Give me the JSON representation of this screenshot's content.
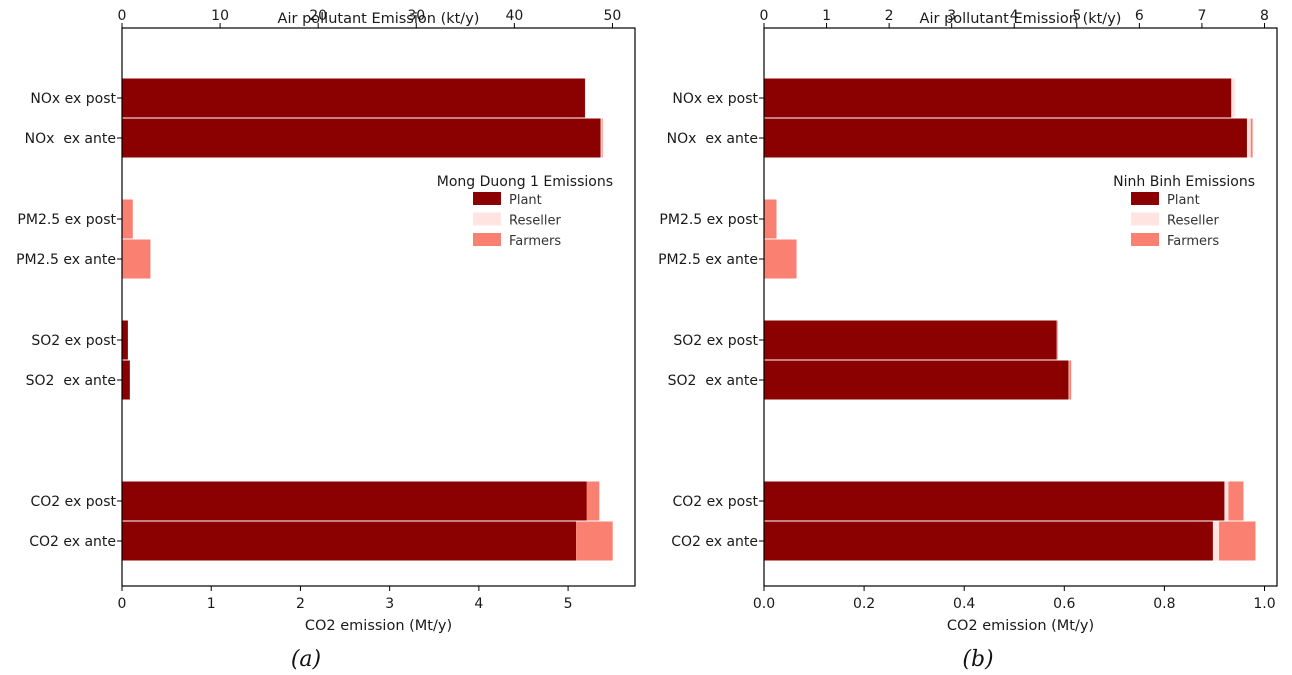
{
  "colors": {
    "plant": "#8b0000",
    "reseller": "#ffe4e1",
    "farmers": "#fa8072",
    "axis": "#000000"
  },
  "chart_data": [
    {
      "type": "bar",
      "orientation": "horizontal",
      "stacked": true,
      "caption": "(a)",
      "legend_title": "Mong Duong 1 Emissions",
      "legend_position": "right",
      "xlabel": "CO2 emission (Mt/y)",
      "x2label": "Air pollutant Emission (kt/y)",
      "xlim": [
        0,
        5.75
      ],
      "x2lim": [
        0,
        52.3
      ],
      "xticks": [
        0,
        1,
        2,
        3,
        4,
        5
      ],
      "xtick_labels": [
        "0",
        "1",
        "2",
        "3",
        "4",
        "5"
      ],
      "x2ticks": [
        0,
        10,
        20,
        30,
        40,
        50
      ],
      "x2tick_labels": [
        "0",
        "10",
        "20",
        "30",
        "40",
        "50"
      ],
      "series_names": [
        "Plant",
        "Reseller",
        "Farmers"
      ],
      "categories": [
        "NOx ex post",
        "NOx  ex ante",
        "PM2.5 ex post",
        "PM2.5 ex ante",
        "SO2 ex post",
        "SO2  ex ante",
        "CO2 ex post",
        "CO2 ex ante"
      ],
      "category_axis": [
        "top",
        "top",
        "top",
        "top",
        "top",
        "top",
        "bottom",
        "bottom"
      ],
      "values": {
        "Plant": [
          47.2,
          48.8,
          0,
          0,
          0.6,
          0.8,
          5.21,
          5.09
        ],
        "Reseller": [
          0.1,
          0.1,
          0,
          0,
          0,
          0,
          0,
          0
        ],
        "Farmers": [
          0,
          0.1,
          1.1,
          2.9,
          0,
          0,
          0.14,
          0.41
        ]
      }
    },
    {
      "type": "bar",
      "orientation": "horizontal",
      "stacked": true,
      "caption": "(b)",
      "legend_title": "Ninh Binh Emissions",
      "legend_position": "right",
      "xlabel": "CO2 emission (Mt/y)",
      "x2label": "Air pollutant Emission (kt/y)",
      "xlim": [
        0,
        1.025
      ],
      "x2lim": [
        0,
        8.2
      ],
      "xticks": [
        0,
        0.2,
        0.4,
        0.6,
        0.8,
        1.0
      ],
      "xtick_labels": [
        "0.0",
        "0.2",
        "0.4",
        "0.6",
        "0.8",
        "1.0"
      ],
      "x2ticks": [
        0,
        1,
        2,
        3,
        4,
        5,
        6,
        7,
        8
      ],
      "x2tick_labels": [
        "0",
        "1",
        "2",
        "3",
        "4",
        "5",
        "6",
        "7",
        "8"
      ],
      "series_names": [
        "Plant",
        "Reseller",
        "Farmers"
      ],
      "categories": [
        "NOx ex post",
        "NOx  ex ante",
        "PM2.5 ex post",
        "PM2.5 ex ante",
        "SO2 ex post",
        "SO2  ex ante",
        "CO2 ex post",
        "CO2 ex ante"
      ],
      "category_axis": [
        "top",
        "top",
        "top",
        "top",
        "top",
        "top",
        "bottom",
        "bottom"
      ],
      "values": {
        "Plant": [
          7.47,
          7.72,
          0,
          0,
          4.68,
          4.87,
          0.92,
          0.897
        ],
        "Reseller": [
          0.06,
          0.06,
          0,
          0,
          0.01,
          0.01,
          0.008,
          0.012
        ],
        "Farmers": [
          0,
          0.03,
          0.2,
          0.52,
          0.01,
          0.03,
          0.03,
          0.073
        ]
      }
    }
  ]
}
